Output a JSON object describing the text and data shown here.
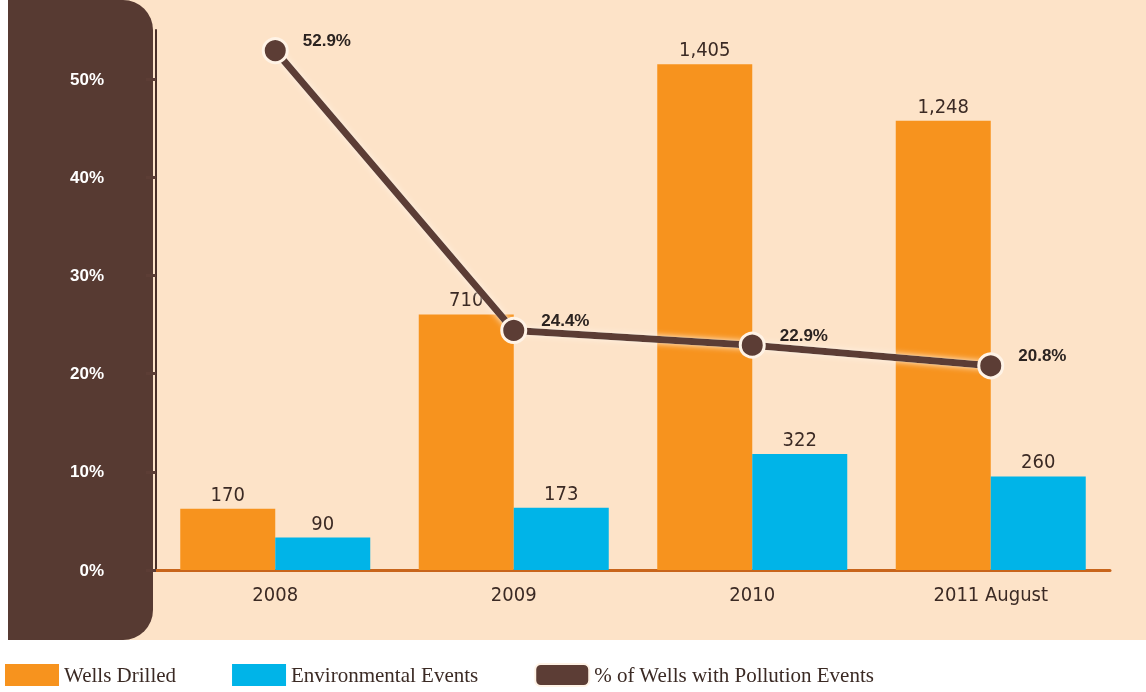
{
  "chart_data": {
    "type": "bar",
    "categories": [
      "2008",
      "2009",
      "2010",
      "2011 August"
    ],
    "series": [
      {
        "name": "Wells Drilled",
        "color": "#f7931e",
        "axis": "y2",
        "values": [
          170,
          710,
          1405,
          1248
        ],
        "value_labels": [
          "170",
          "710",
          "1,405",
          "1,248"
        ]
      },
      {
        "name": "Environmental Events",
        "color": "#00b4e8",
        "axis": "y2",
        "values": [
          90,
          173,
          322,
          260
        ],
        "value_labels": [
          "90",
          "173",
          "322",
          "260"
        ]
      },
      {
        "name": "% of Wells with Pollution Events",
        "type": "line",
        "color": "#5c3d35",
        "marker": "circle",
        "values": [
          52.9,
          24.4,
          22.9,
          20.8
        ],
        "value_labels": [
          "52.9%",
          "24.4%",
          "22.9%",
          "20.8%"
        ]
      }
    ],
    "ylim": [
      0,
      55
    ],
    "yticks": [
      {
        "value": 0,
        "label": "0%"
      },
      {
        "value": 10,
        "label": "10%"
      },
      {
        "value": 20,
        "label": "20%"
      },
      {
        "value": 30,
        "label": "30%"
      },
      {
        "value": 40,
        "label": "40%"
      },
      {
        "value": 50,
        "label": "50%"
      }
    ],
    "grid": false,
    "legend": "bottom left"
  }
}
